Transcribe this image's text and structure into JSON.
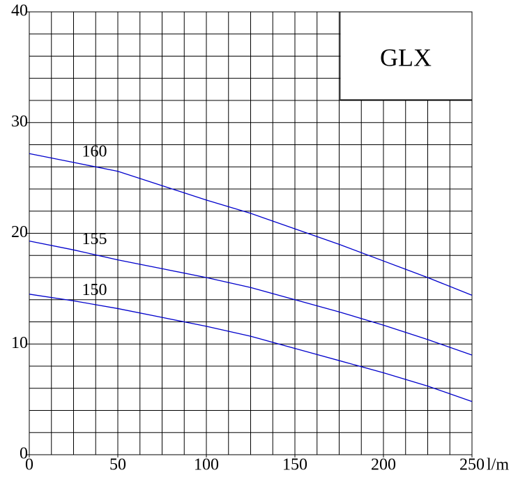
{
  "chart_data": {
    "type": "line",
    "title": "GLX",
    "x_unit": "l/m",
    "x": [
      0,
      25,
      50,
      75,
      100,
      125,
      150,
      175,
      200,
      225,
      250
    ],
    "series": [
      {
        "name": "160",
        "color": "#0000cc",
        "values": [
          27.2,
          26.4,
          25.6,
          24.3,
          23.0,
          21.8,
          20.4,
          19.0,
          17.5,
          16.0,
          14.4
        ]
      },
      {
        "name": "155",
        "color": "#0000cc",
        "values": [
          19.3,
          18.5,
          17.6,
          16.8,
          16.0,
          15.1,
          14.0,
          12.9,
          11.7,
          10.4,
          9.0
        ]
      },
      {
        "name": "150",
        "color": "#0000cc",
        "values": [
          14.5,
          13.9,
          13.2,
          12.4,
          11.6,
          10.7,
          9.6,
          8.5,
          7.4,
          6.2,
          4.8
        ]
      }
    ],
    "xlim": [
      0,
      250
    ],
    "ylim": [
      0,
      40
    ],
    "xticks": [
      0,
      50,
      100,
      150,
      200,
      250
    ],
    "yticks": [
      0,
      10,
      20,
      30,
      40
    ],
    "xgrid": [
      0,
      12.5,
      25,
      37.5,
      50,
      62.5,
      75,
      87.5,
      100,
      112.5,
      125,
      137.5,
      150,
      162.5,
      175,
      187.5,
      200,
      212.5,
      225,
      237.5,
      250
    ],
    "ygrid": [
      0,
      2,
      4,
      6,
      8,
      10,
      12,
      14,
      16,
      18,
      20,
      22,
      24,
      26,
      28,
      30,
      32,
      34,
      36,
      38,
      40
    ]
  }
}
